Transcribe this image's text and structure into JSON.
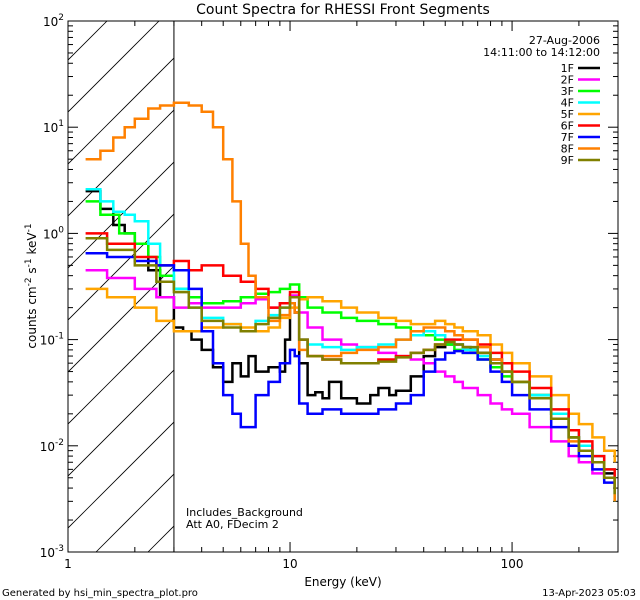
{
  "chart_data": {
    "type": "line",
    "title": "Count Spectra for RHESSI Front Segments",
    "xlabel": "Energy (keV)",
    "ylabel": "counts cm-2 s-1 keV-1",
    "ylabel_parts": {
      "main": "counts cm",
      "e1": "-2",
      "mid": " s",
      "e2": "-1",
      "mid2": " keV",
      "e3": "-1"
    },
    "xscale": "log",
    "yscale": "log",
    "xlim": [
      1,
      300
    ],
    "ylim": [
      0.001,
      100
    ],
    "x_ticks": [
      {
        "value": 1,
        "label": "1"
      },
      {
        "value": 10,
        "label": "10"
      },
      {
        "value": 100,
        "label": "100"
      }
    ],
    "y_ticks": [
      {
        "value": 0.001,
        "base": "10",
        "exp": "-3"
      },
      {
        "value": 0.01,
        "base": "10",
        "exp": "-2"
      },
      {
        "value": 0.1,
        "base": "10",
        "exp": "-1"
      },
      {
        "value": 1,
        "base": "10",
        "exp": "0"
      },
      {
        "value": 10,
        "base": "10",
        "exp": "1"
      },
      {
        "value": 100,
        "base": "10",
        "exp": "2"
      }
    ],
    "hatch_region": {
      "x_max": 3
    },
    "date_text": "27-Aug-2006",
    "time_text": "14:11:00 to 14:12:00",
    "annotations": [
      "Includes_Background",
      "Att A0, FDecim 2"
    ],
    "legend_position": "top-right",
    "series": [
      {
        "name": "1F",
        "color": "#000000",
        "x": [
          1.2,
          1.4,
          1.6,
          1.8,
          2.0,
          2.3,
          2.6,
          3.0,
          3.3,
          3.6,
          4.0,
          4.5,
          5,
          5.5,
          6,
          6.5,
          7,
          8,
          9,
          9.5,
          10,
          10.5,
          11,
          12,
          13,
          14,
          15,
          17,
          20,
          23,
          25,
          28,
          30,
          35,
          40,
          45,
          50,
          55,
          60,
          65,
          70,
          80,
          90,
          100,
          120,
          150,
          180,
          200,
          230,
          260,
          290
        ],
        "y": [
          2.5,
          1.7,
          1.2,
          1.0,
          0.8,
          0.45,
          0.25,
          0.13,
          0.12,
          0.1,
          0.08,
          0.055,
          0.04,
          0.06,
          0.045,
          0.07,
          0.05,
          0.055,
          0.05,
          0.1,
          0.22,
          0.18,
          0.06,
          0.03,
          0.032,
          0.028,
          0.04,
          0.028,
          0.025,
          0.03,
          0.035,
          0.03,
          0.033,
          0.045,
          0.07,
          0.085,
          0.09,
          0.09,
          0.085,
          0.08,
          0.075,
          0.065,
          0.05,
          0.04,
          0.03,
          0.02,
          0.012,
          0.009,
          0.007,
          0.0055,
          0.004
        ]
      },
      {
        "name": "2F",
        "color": "#ff00ff",
        "x": [
          1.2,
          1.5,
          2,
          2.5,
          3,
          3.5,
          4,
          5,
          6,
          7,
          8,
          9,
          10,
          11,
          12,
          14,
          17,
          20,
          25,
          30,
          35,
          40,
          45,
          50,
          55,
          60,
          70,
          80,
          90,
          100,
          120,
          150,
          180,
          200,
          230,
          260,
          290
        ],
        "y": [
          0.45,
          0.38,
          0.3,
          0.25,
          0.2,
          0.22,
          0.2,
          0.2,
          0.22,
          0.24,
          0.2,
          0.22,
          0.26,
          0.18,
          0.13,
          0.1,
          0.09,
          0.085,
          0.075,
          0.07,
          0.065,
          0.06,
          0.05,
          0.045,
          0.04,
          0.035,
          0.03,
          0.025,
          0.022,
          0.02,
          0.015,
          0.011,
          0.008,
          0.007,
          0.0055,
          0.005,
          0.004
        ]
      },
      {
        "name": "3F",
        "color": "#00ff00",
        "x": [
          1.2,
          1.4,
          1.7,
          2.0,
          2.3,
          2.6,
          3.0,
          3.5,
          4,
          5,
          6,
          7,
          8,
          9,
          10,
          11,
          12,
          14,
          17,
          20,
          25,
          30,
          35,
          40,
          45,
          50,
          55,
          60,
          70,
          80,
          90,
          100,
          120,
          150,
          180,
          200,
          230,
          260,
          290
        ],
        "y": [
          2.0,
          1.5,
          1.0,
          0.8,
          0.6,
          0.4,
          0.3,
          0.25,
          0.22,
          0.23,
          0.25,
          0.27,
          0.28,
          0.3,
          0.33,
          0.25,
          0.2,
          0.18,
          0.16,
          0.15,
          0.14,
          0.13,
          0.12,
          0.11,
          0.1,
          0.09,
          0.08,
          0.075,
          0.065,
          0.055,
          0.045,
          0.04,
          0.03,
          0.02,
          0.012,
          0.009,
          0.007,
          0.005,
          0.003
        ]
      },
      {
        "name": "4F",
        "color": "#00ffff",
        "x": [
          1.2,
          1.4,
          1.6,
          1.8,
          2.0,
          2.3,
          2.6,
          3.0,
          3.5,
          4,
          5,
          6,
          7,
          8,
          9,
          10,
          11,
          12,
          14,
          17,
          20,
          25,
          30,
          35,
          40,
          45,
          50,
          55,
          60,
          70,
          80,
          90,
          100,
          120,
          150,
          180,
          200,
          230,
          260,
          290
        ],
        "y": [
          2.6,
          2.0,
          1.6,
          1.5,
          1.3,
          0.8,
          0.5,
          0.3,
          0.2,
          0.16,
          0.14,
          0.12,
          0.15,
          0.17,
          0.2,
          0.25,
          0.1,
          0.09,
          0.085,
          0.08,
          0.085,
          0.09,
          0.1,
          0.11,
          0.12,
          0.11,
          0.1,
          0.09,
          0.08,
          0.07,
          0.06,
          0.05,
          0.04,
          0.03,
          0.02,
          0.014,
          0.01,
          0.008,
          0.006,
          0.004
        ]
      },
      {
        "name": "5F",
        "color": "#ffa500",
        "x": [
          1.2,
          1.5,
          2,
          2.5,
          3,
          3.5,
          4,
          5,
          6,
          7,
          8,
          9,
          10,
          11,
          12,
          14,
          17,
          20,
          25,
          30,
          35,
          40,
          45,
          50,
          55,
          60,
          70,
          80,
          90,
          100,
          120,
          150,
          180,
          200,
          230,
          260,
          290
        ],
        "y": [
          0.3,
          0.25,
          0.2,
          0.15,
          0.12,
          0.12,
          0.13,
          0.14,
          0.13,
          0.12,
          0.13,
          0.16,
          0.2,
          0.24,
          0.25,
          0.23,
          0.2,
          0.18,
          0.16,
          0.15,
          0.14,
          0.14,
          0.15,
          0.14,
          0.13,
          0.12,
          0.11,
          0.09,
          0.075,
          0.06,
          0.045,
          0.03,
          0.02,
          0.016,
          0.012,
          0.009,
          0.007
        ]
      },
      {
        "name": "6F",
        "color": "#ff0000",
        "x": [
          1.2,
          1.5,
          2,
          2.5,
          3,
          3.5,
          4,
          5,
          6,
          7,
          8,
          9,
          10,
          11,
          12,
          14,
          17,
          20,
          25,
          30,
          35,
          40,
          45,
          50,
          55,
          60,
          70,
          80,
          90,
          100,
          120,
          150,
          180,
          200,
          230,
          260,
          290
        ],
        "y": [
          1.0,
          0.8,
          0.6,
          0.5,
          0.55,
          0.45,
          0.5,
          0.4,
          0.35,
          0.3,
          0.2,
          0.22,
          0.28,
          0.1,
          0.07,
          0.065,
          0.06,
          0.06,
          0.065,
          0.07,
          0.075,
          0.08,
          0.09,
          0.1,
          0.1,
          0.1,
          0.09,
          0.075,
          0.06,
          0.05,
          0.035,
          0.022,
          0.014,
          0.011,
          0.008,
          0.006,
          0.004
        ]
      },
      {
        "name": "7F",
        "color": "#0000ff",
        "x": [
          1.2,
          1.5,
          2,
          2.5,
          3,
          3.5,
          4,
          4.5,
          5,
          5.5,
          6,
          7,
          8,
          9,
          10,
          10.5,
          11,
          12,
          14,
          17,
          20,
          25,
          30,
          35,
          40,
          45,
          50,
          55,
          60,
          70,
          80,
          90,
          100,
          120,
          150,
          180,
          200,
          230,
          260,
          290
        ],
        "y": [
          0.65,
          0.6,
          0.55,
          0.5,
          0.45,
          0.3,
          0.12,
          0.06,
          0.03,
          0.02,
          0.015,
          0.03,
          0.04,
          0.06,
          0.08,
          0.07,
          0.025,
          0.02,
          0.022,
          0.02,
          0.02,
          0.022,
          0.025,
          0.03,
          0.05,
          0.065,
          0.075,
          0.078,
          0.075,
          0.065,
          0.05,
          0.04,
          0.03,
          0.022,
          0.015,
          0.01,
          0.008,
          0.006,
          0.0045,
          0.0035
        ]
      },
      {
        "name": "8F",
        "color": "#ff8000",
        "x": [
          1.2,
          1.4,
          1.6,
          1.8,
          2.0,
          2.3,
          2.6,
          3.0,
          3.5,
          4,
          4.5,
          5,
          5.5,
          6,
          6.5,
          7,
          8,
          9,
          10,
          10.5,
          11,
          12,
          14,
          17,
          20,
          25,
          30,
          35,
          40,
          45,
          50,
          55,
          60,
          70,
          80,
          90,
          100,
          120,
          150,
          180,
          200,
          230,
          260,
          290
        ],
        "y": [
          5,
          6,
          8,
          10,
          12,
          15,
          16,
          17,
          16,
          14,
          10,
          5,
          2,
          0.8,
          0.4,
          0.25,
          0.15,
          0.17,
          0.22,
          0.18,
          0.08,
          0.07,
          0.07,
          0.075,
          0.08,
          0.085,
          0.1,
          0.12,
          0.13,
          0.13,
          0.12,
          0.11,
          0.1,
          0.085,
          0.065,
          0.05,
          0.04,
          0.028,
          0.018,
          0.011,
          0.009,
          0.007,
          0.005,
          0.003
        ]
      },
      {
        "name": "9F",
        "color": "#808000",
        "x": [
          1.2,
          1.5,
          2,
          2.5,
          3,
          3.5,
          4,
          5,
          6,
          7,
          8,
          9,
          10,
          11,
          12,
          14,
          17,
          20,
          25,
          30,
          35,
          40,
          45,
          50,
          55,
          60,
          70,
          80,
          90,
          100,
          120,
          150,
          180,
          200,
          230,
          260,
          290
        ],
        "y": [
          0.9,
          0.7,
          0.5,
          0.35,
          0.28,
          0.2,
          0.15,
          0.13,
          0.12,
          0.14,
          0.16,
          0.2,
          0.25,
          0.1,
          0.07,
          0.065,
          0.06,
          0.06,
          0.062,
          0.068,
          0.075,
          0.08,
          0.09,
          0.095,
          0.09,
          0.085,
          0.075,
          0.06,
          0.05,
          0.04,
          0.028,
          0.018,
          0.012,
          0.009,
          0.007,
          0.005,
          0.0035
        ]
      }
    ]
  },
  "footer": {
    "generated_by": "Generated by hsi_min_spectra_plot.pro",
    "timestamp": "13-Apr-2023 05:03"
  }
}
